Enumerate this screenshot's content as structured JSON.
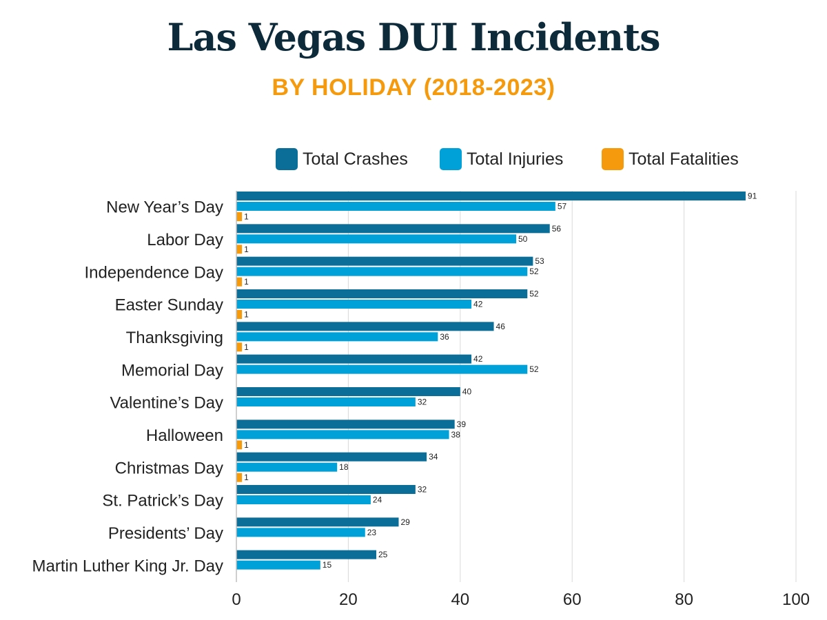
{
  "chart_data": {
    "type": "bar",
    "orientation": "horizontal",
    "title": "Las Vegas DUI Incidents",
    "subtitle": "BY HOLIDAY (2018-2023)",
    "categories": [
      "New Year’s Day",
      "Labor Day",
      "Independence Day",
      "Easter Sunday",
      "Thanksgiving",
      "Memorial Day",
      "Valentine’s Day",
      "Halloween",
      "Christmas Day",
      "St. Patrick’s Day",
      "Presidents’ Day",
      "Martin Luther King Jr. Day"
    ],
    "series": [
      {
        "name": "Total Crashes",
        "color": "#0a6e99",
        "values": [
          91,
          56,
          53,
          52,
          46,
          42,
          40,
          39,
          34,
          32,
          29,
          25
        ]
      },
      {
        "name": "Total Injuries",
        "color": "#00a0d8",
        "values": [
          57,
          50,
          52,
          42,
          36,
          52,
          32,
          38,
          18,
          24,
          23,
          15
        ]
      },
      {
        "name": "Total Fatalities",
        "color": "#f49a0c",
        "values": [
          1,
          1,
          1,
          1,
          1,
          null,
          null,
          1,
          1,
          null,
          null,
          null
        ]
      }
    ],
    "xlim": [
      0,
      100
    ],
    "xticks": [
      0,
      20,
      40,
      60,
      80,
      100
    ],
    "grid": "vertical",
    "legend": "top-right"
  }
}
